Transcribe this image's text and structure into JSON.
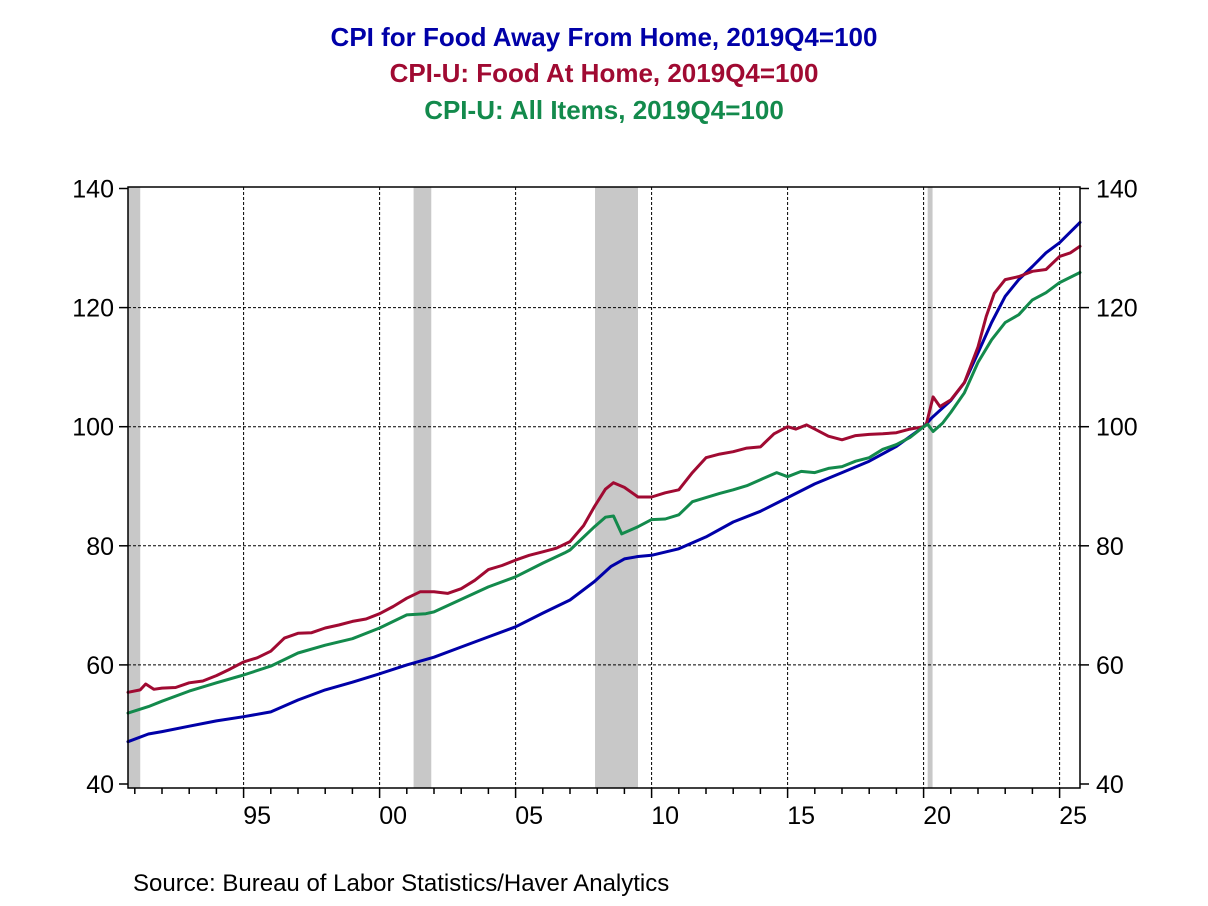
{
  "chart_data": {
    "type": "line",
    "titles": [
      "CPI for Food Away From Home, 2019Q4=100",
      "CPI-U: Food At Home, 2019Q4=100",
      "CPI-U: All Items, 2019Q4=100"
    ],
    "xlabel": "",
    "ylabel": "",
    "xlim": [
      1990.75,
      2025.75
    ],
    "ylim": [
      40,
      140
    ],
    "yticks": [
      40,
      60,
      80,
      100,
      120,
      140
    ],
    "xtick_labels": [
      {
        "year": 1995,
        "label": "95"
      },
      {
        "year": 2000,
        "label": "00"
      },
      {
        "year": 2005,
        "label": "05"
      },
      {
        "year": 2010,
        "label": "10"
      },
      {
        "year": 2015,
        "label": "15"
      },
      {
        "year": 2020,
        "label": "20"
      },
      {
        "year": 2025,
        "label": "25"
      }
    ],
    "grid": true,
    "recessions": [
      [
        1990.75,
        1991.2
      ],
      [
        2001.25,
        2001.9
      ],
      [
        2007.92,
        2009.5
      ],
      [
        2020.15,
        2020.33
      ]
    ],
    "series": [
      {
        "name": "CPI for Food Away From Home, 2019Q4=100",
        "color": "#0000a8",
        "points": [
          [
            1990.75,
            47.1
          ],
          [
            1991.5,
            48.4
          ],
          [
            1992,
            48.8
          ],
          [
            1993,
            49.7
          ],
          [
            1994,
            50.6
          ],
          [
            1995,
            51.3
          ],
          [
            1996,
            52.1
          ],
          [
            1997,
            54.1
          ],
          [
            1998,
            55.8
          ],
          [
            1999,
            57.1
          ],
          [
            2000,
            58.5
          ],
          [
            2001,
            60.0
          ],
          [
            2002,
            61.3
          ],
          [
            2003,
            63.0
          ],
          [
            2004,
            64.7
          ],
          [
            2005,
            66.4
          ],
          [
            2006,
            68.7
          ],
          [
            2007,
            70.9
          ],
          [
            2007.9,
            74.0
          ],
          [
            2008.5,
            76.5
          ],
          [
            2009,
            77.8
          ],
          [
            2009.5,
            78.2
          ],
          [
            2010,
            78.4
          ],
          [
            2011,
            79.5
          ],
          [
            2012,
            81.5
          ],
          [
            2013,
            84.0
          ],
          [
            2014,
            85.8
          ],
          [
            2015,
            88.1
          ],
          [
            2016,
            90.4
          ],
          [
            2017,
            92.3
          ],
          [
            2018,
            94.2
          ],
          [
            2019,
            96.7
          ],
          [
            2020,
            100.0
          ],
          [
            2020.3,
            101.5
          ],
          [
            2021,
            104.4
          ],
          [
            2021.5,
            107.4
          ],
          [
            2022,
            112.4
          ],
          [
            2022.5,
            117.5
          ],
          [
            2023,
            121.9
          ],
          [
            2023.5,
            124.7
          ],
          [
            2024,
            126.9
          ],
          [
            2024.5,
            129.2
          ],
          [
            2025,
            130.9
          ],
          [
            2025.75,
            134.3
          ]
        ]
      },
      {
        "name": "CPI-U: Food At Home, 2019Q4=100",
        "color": "#a00a32",
        "points": [
          [
            1990.75,
            55.4
          ],
          [
            1991.2,
            55.8
          ],
          [
            1991.4,
            56.8
          ],
          [
            1991.7,
            55.9
          ],
          [
            1992,
            56.1
          ],
          [
            1992.5,
            56.2
          ],
          [
            1993,
            57.0
          ],
          [
            1993.5,
            57.3
          ],
          [
            1994,
            58.2
          ],
          [
            1994.5,
            59.3
          ],
          [
            1995,
            60.5
          ],
          [
            1995.5,
            61.2
          ],
          [
            1996,
            62.3
          ],
          [
            1996.5,
            64.5
          ],
          [
            1997,
            65.3
          ],
          [
            1997.5,
            65.4
          ],
          [
            1998,
            66.2
          ],
          [
            1998.5,
            66.7
          ],
          [
            1999,
            67.3
          ],
          [
            1999.5,
            67.7
          ],
          [
            2000,
            68.6
          ],
          [
            2000.5,
            69.8
          ],
          [
            2001,
            71.2
          ],
          [
            2001.5,
            72.3
          ],
          [
            2002,
            72.3
          ],
          [
            2002.5,
            72.0
          ],
          [
            2003,
            72.8
          ],
          [
            2003.5,
            74.2
          ],
          [
            2004,
            76.0
          ],
          [
            2004.5,
            76.7
          ],
          [
            2005,
            77.6
          ],
          [
            2005.5,
            78.4
          ],
          [
            2006,
            79.0
          ],
          [
            2006.5,
            79.6
          ],
          [
            2007,
            80.7
          ],
          [
            2007.5,
            83.4
          ],
          [
            2007.9,
            86.6
          ],
          [
            2008.3,
            89.5
          ],
          [
            2008.6,
            90.6
          ],
          [
            2009,
            89.8
          ],
          [
            2009.5,
            88.2
          ],
          [
            2010,
            88.2
          ],
          [
            2010.5,
            88.9
          ],
          [
            2011,
            89.4
          ],
          [
            2011.5,
            92.3
          ],
          [
            2012,
            94.8
          ],
          [
            2012.5,
            95.4
          ],
          [
            2013,
            95.8
          ],
          [
            2013.5,
            96.4
          ],
          [
            2014,
            96.6
          ],
          [
            2014.5,
            98.8
          ],
          [
            2015,
            100.0
          ],
          [
            2015.3,
            99.6
          ],
          [
            2015.7,
            100.3
          ],
          [
            2016,
            99.6
          ],
          [
            2016.5,
            98.4
          ],
          [
            2017,
            97.8
          ],
          [
            2017.5,
            98.5
          ],
          [
            2018,
            98.7
          ],
          [
            2018.5,
            98.8
          ],
          [
            2019,
            99.0
          ],
          [
            2019.5,
            99.6
          ],
          [
            2020,
            100.0
          ],
          [
            2020.1,
            100.4
          ],
          [
            2020.35,
            105.0
          ],
          [
            2020.6,
            103.4
          ],
          [
            2021,
            104.5
          ],
          [
            2021.5,
            107.4
          ],
          [
            2022,
            113.4
          ],
          [
            2022.3,
            118.5
          ],
          [
            2022.6,
            122.4
          ],
          [
            2023,
            124.7
          ],
          [
            2023.5,
            125.2
          ],
          [
            2024,
            126.1
          ],
          [
            2024.5,
            126.4
          ],
          [
            2025,
            128.6
          ],
          [
            2025.4,
            129.2
          ],
          [
            2025.75,
            130.3
          ]
        ]
      },
      {
        "name": "CPI-U: All Items, 2019Q4=100",
        "color": "#138a4c",
        "points": [
          [
            1990.75,
            51.9
          ],
          [
            1991.5,
            53.0
          ],
          [
            1992,
            53.9
          ],
          [
            1993,
            55.6
          ],
          [
            1994,
            57.0
          ],
          [
            1995,
            58.3
          ],
          [
            1996,
            59.8
          ],
          [
            1997,
            62.0
          ],
          [
            1998,
            63.3
          ],
          [
            1999,
            64.4
          ],
          [
            2000,
            66.2
          ],
          [
            2001,
            68.4
          ],
          [
            2001.7,
            68.6
          ],
          [
            2002,
            68.9
          ],
          [
            2003,
            71.0
          ],
          [
            2004,
            73.1
          ],
          [
            2005,
            74.8
          ],
          [
            2006,
            77.1
          ],
          [
            2006.8,
            78.8
          ],
          [
            2007,
            79.3
          ],
          [
            2007.9,
            83.2
          ],
          [
            2008.3,
            84.8
          ],
          [
            2008.6,
            85.0
          ],
          [
            2008.9,
            82.0
          ],
          [
            2009.5,
            83.2
          ],
          [
            2010,
            84.4
          ],
          [
            2010.5,
            84.5
          ],
          [
            2011,
            85.2
          ],
          [
            2011.5,
            87.4
          ],
          [
            2012,
            88.1
          ],
          [
            2012.5,
            88.8
          ],
          [
            2013,
            89.4
          ],
          [
            2013.5,
            90.1
          ],
          [
            2014,
            91.1
          ],
          [
            2014.6,
            92.3
          ],
          [
            2015,
            91.6
          ],
          [
            2015.5,
            92.5
          ],
          [
            2016,
            92.3
          ],
          [
            2016.5,
            93.0
          ],
          [
            2017,
            93.3
          ],
          [
            2017.5,
            94.2
          ],
          [
            2018,
            94.8
          ],
          [
            2018.5,
            96.2
          ],
          [
            2019,
            97.0
          ],
          [
            2019.5,
            98.2
          ],
          [
            2020,
            100.0
          ],
          [
            2020.15,
            100.4
          ],
          [
            2020.35,
            99.2
          ],
          [
            2020.7,
            100.6
          ],
          [
            2021,
            102.4
          ],
          [
            2021.5,
            105.7
          ],
          [
            2022,
            110.8
          ],
          [
            2022.5,
            114.6
          ],
          [
            2023,
            117.5
          ],
          [
            2023.5,
            118.8
          ],
          [
            2024,
            121.3
          ],
          [
            2024.5,
            122.5
          ],
          [
            2025,
            124.2
          ],
          [
            2025.75,
            125.9
          ]
        ]
      }
    ]
  },
  "source": "Source:  Bureau of Labor Statistics/Haver Analytics",
  "colors": {
    "grid": "#000000",
    "recession": "#c8c8c8",
    "axis": "#000000"
  }
}
